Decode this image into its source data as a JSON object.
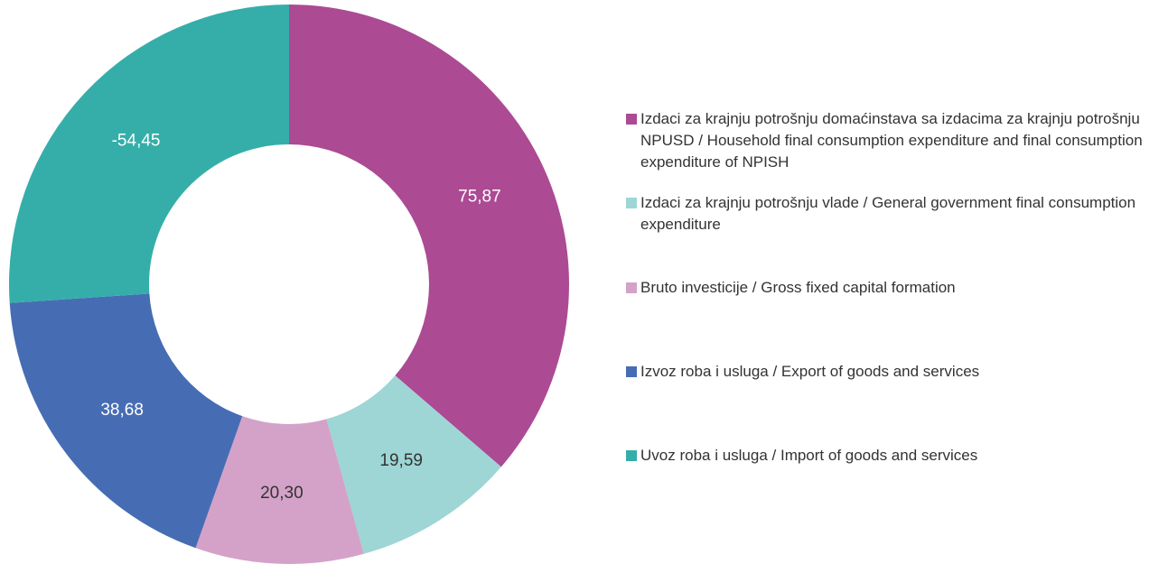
{
  "chart_data": {
    "type": "donut",
    "categories": [
      "Izdaci za krajnju potrošnju domaćinstava sa izdacima za krajnju potrošnju NPUSD / Household final consumption expenditure and final consumption expenditure of NPISH",
      "Izdaci za krajnju potrošnju vlade / General government final consumption expenditure",
      "Bruto investicije / Gross fixed capital formation",
      "Izvoz roba i usluga / Export of goods and services",
      "Uvoz roba i usluga / Import of goods and services"
    ],
    "values": [
      75.87,
      19.59,
      20.3,
      38.68,
      -54.45
    ],
    "value_labels": [
      "75,87",
      "19,59",
      "20,30",
      "38,68",
      "-54,45"
    ],
    "colors": [
      "#ac4a93",
      "#9dd6d4",
      "#d4a2c8",
      "#466db4",
      "#35aea9"
    ],
    "legend": "right"
  }
}
